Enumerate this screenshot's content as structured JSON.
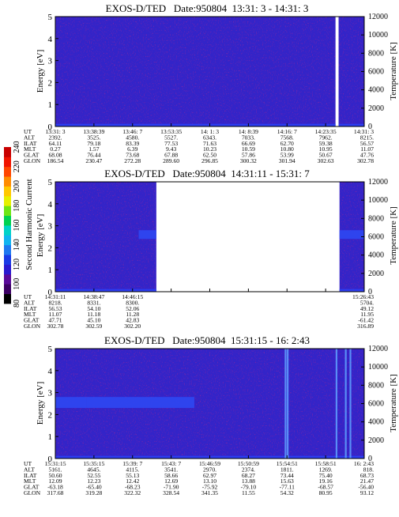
{
  "colorbar": {
    "label": "Second Harmonic Current",
    "ticks": [
      "240",
      "220",
      "200",
      "180",
      "160",
      "140",
      "120",
      "100",
      "80"
    ]
  },
  "chart_data": [
    {
      "type": "heatmap",
      "title": "EXOS-D/TED   Date:950804  13:31: 3 - 14:31: 3",
      "ylabel": "Energy [eV]",
      "y2label": "Temperature [K]",
      "ylim": [
        0,
        5
      ],
      "y2lim": [
        0,
        12000
      ],
      "yticks": [
        "0",
        "1",
        "2",
        "3",
        "4",
        "5"
      ],
      "y2ticks": [
        "0",
        "2000",
        "4000",
        "6000",
        "8000",
        "10000",
        "12000"
      ],
      "data_gaps": [
        [
          0.907,
          0.917
        ]
      ],
      "band": null,
      "spikes": [],
      "table_labels": [
        "UT",
        "ALT",
        "ILAT",
        "MLT",
        "GLAT",
        "GLON"
      ],
      "columns": [
        [
          "13:31: 3",
          "2392.",
          "64.11",
          "0.27",
          "68.08",
          "186.54"
        ],
        [
          "13:38:39",
          "3525.",
          "79.18",
          "1.57",
          "76.44",
          "230.47"
        ],
        [
          "13:46: 7",
          "4580.",
          "83.39",
          "6.39",
          "73.68",
          "272.28"
        ],
        [
          "13:53:35",
          "5527.",
          "77.53",
          "9.43",
          "67.88",
          "289.60"
        ],
        [
          "14: 1: 3",
          "6343.",
          "71.63",
          "10.23",
          "62.50",
          "296.85"
        ],
        [
          "14: 8:39",
          "7033.",
          "66.69",
          "10.59",
          "57.86",
          "300.32"
        ],
        [
          "14:16: 7",
          "7568.",
          "62.70",
          "10.80",
          "53.99",
          "301.94"
        ],
        [
          "14:23:35",
          "7962.",
          "59.38",
          "10.95",
          "50.67",
          "302.63"
        ],
        [
          "14:31: 3",
          "8215.",
          "56.57",
          "11.07",
          "47.76",
          "302.78"
        ]
      ]
    },
    {
      "type": "heatmap",
      "title": "EXOS-D/TED   Date:950804  14:31:11 - 15:31: 7",
      "ylabel": "Energy [eV]",
      "y2label": "Temperature [K]",
      "ylim": [
        0,
        5
      ],
      "y2lim": [
        0,
        12000
      ],
      "yticks": [
        "0",
        "1",
        "2",
        "3",
        "4",
        "5"
      ],
      "y2ticks": [
        "0",
        "2000",
        "4000",
        "6000",
        "8000",
        "10000",
        "12000"
      ],
      "data_gaps": [
        [
          0.327,
          0.92
        ]
      ],
      "band": {
        "energy": [
          2.4,
          2.8
        ],
        "segments": [
          [
            0.27,
            0.327
          ],
          [
            0.92,
            1.0
          ]
        ]
      },
      "spikes": [],
      "table_labels": [
        "UT",
        "ALT",
        "ILAT",
        "MLT",
        "GLAT",
        "GLON"
      ],
      "columns": [
        [
          "14:31:11",
          "8218.",
          "56.53",
          "11.07",
          "47.71",
          "302.78"
        ],
        [
          "14:38:47",
          "8331.",
          "54.10",
          "11.18",
          "45.10",
          "302.59"
        ],
        [
          "14:46:15",
          "8300.",
          "52.06",
          "11.28",
          "42.83",
          "302.20"
        ],
        null,
        null,
        null,
        null,
        null,
        [
          "15:26:43",
          "5704.",
          "49.12",
          "11.95",
          "-61.42",
          "316.89"
        ]
      ]
    },
    {
      "type": "heatmap",
      "title": "EXOS-D/TED   Date:950804  15:31:15 - 16: 2:43",
      "ylabel": "Energy [eV]",
      "y2label": "Temperature [K]",
      "ylim": [
        0,
        5
      ],
      "y2lim": [
        0,
        12000
      ],
      "yticks": [
        "0",
        "1",
        "2",
        "3",
        "4",
        "5"
      ],
      "y2ticks": [
        "0",
        "2000",
        "4000",
        "6000",
        "8000",
        "10000",
        "12000"
      ],
      "data_gaps": [],
      "band": {
        "energy": [
          2.3,
          2.8
        ],
        "segments": [
          [
            0.0,
            0.1
          ],
          [
            0.1,
            0.45
          ]
        ]
      },
      "spikes": [
        0.745,
        0.752,
        0.91,
        0.94,
        0.955
      ],
      "table_labels": [
        "UT",
        "ALT",
        "ILAT",
        "MLT",
        "GLAT",
        "GLON"
      ],
      "columns": [
        [
          "15:31:15",
          "5161.",
          "50.60",
          "12.09",
          "-63.18",
          "317.68"
        ],
        [
          "15:35:15",
          "4645.",
          "52.55",
          "12.23",
          "-65.40",
          "319.28"
        ],
        [
          "15:39: 7",
          "4115.",
          "55.13",
          "12.42",
          "-68.23",
          "322.32"
        ],
        [
          "15:43: 7",
          "3541.",
          "58.66",
          "12.69",
          "-71.90",
          "328.54"
        ],
        [
          "15:46:59",
          "2970.",
          "62.97",
          "13.10",
          "-75.92",
          "341.35"
        ],
        [
          "15:50:59",
          "2374.",
          "68.27",
          "13.88",
          "-79.10",
          "11.55"
        ],
        [
          "15:54:51",
          "1811.",
          "73.44",
          "15.63",
          "-77.11",
          "54.32"
        ],
        [
          "15:58:51",
          "1269.",
          "75.40",
          "19.16",
          "-68.57",
          "80.95"
        ],
        [
          "16: 2:43",
          "818.",
          "68.73",
          "21.47",
          "-56.40",
          "93.12"
        ]
      ]
    }
  ]
}
